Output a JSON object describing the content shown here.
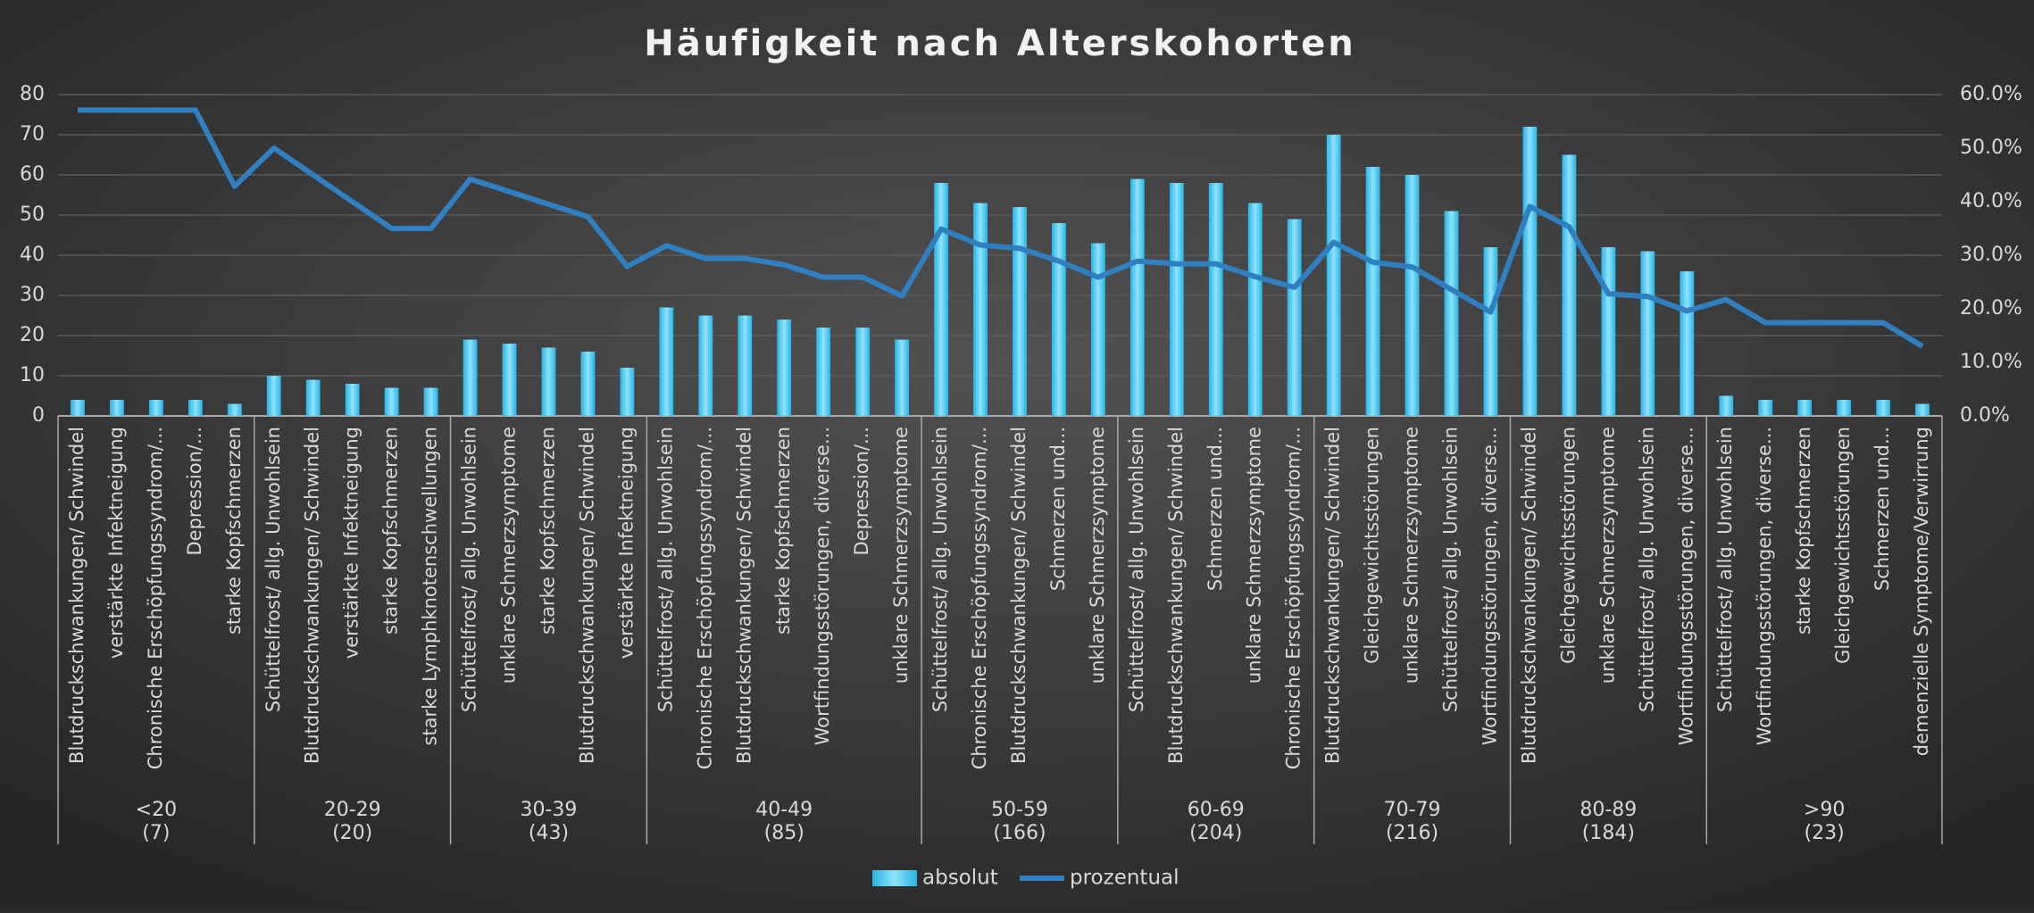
{
  "chart_data": {
    "type": "bar",
    "title": "Häufigkeit nach Alterskohorten",
    "groups": [
      {
        "label": "<20",
        "sublabel": "(7)",
        "categories": [
          "Blutdruckschwankungen/ Schwindel",
          "verstärkte Infektneigung",
          "Chronische Erschöpfungssyndrom/...",
          "Depression/...",
          "starke Kopfschmerzen"
        ]
      },
      {
        "label": "20-29",
        "sublabel": "(20)",
        "categories": [
          "Schüttelfrost/ allg. Unwohlsein",
          "Blutdruckschwankungen/ Schwindel",
          "verstärkte Infektneigung",
          "starke Kopfschmerzen",
          "starke Lymphknotenschwellungen"
        ]
      },
      {
        "label": "30-39",
        "sublabel": "(43)",
        "categories": [
          "Schüttelfrost/ allg. Unwohlsein",
          "unklare Schmerzsymptome",
          "starke Kopfschmerzen",
          "Blutdruckschwankungen/ Schwindel",
          "verstärkte Infektneigung"
        ]
      },
      {
        "label": "40-49",
        "sublabel": "(85)",
        "categories": [
          "Schüttelfrost/ allg. Unwohlsein",
          "Chronische Erschöpfungssyndrom/...",
          "Blutdruckschwankungen/ Schwindel",
          "starke Kopfschmerzen",
          "Wortfindungsstörungen, diverse...",
          "Depression/...",
          "unklare Schmerzsymptome"
        ]
      },
      {
        "label": "50-59",
        "sublabel": "(166)",
        "categories": [
          "Schüttelfrost/ allg. Unwohlsein",
          "Chronische Erschöpfungssyndrom/...",
          "Blutdruckschwankungen/ Schwindel",
          "Schmerzen und...",
          "unklare Schmerzsymptome"
        ]
      },
      {
        "label": "60-69",
        "sublabel": "(204)",
        "categories": [
          "Schüttelfrost/ allg. Unwohlsein",
          "Blutdruckschwankungen/ Schwindel",
          "Schmerzen und...",
          "unklare Schmerzsymptome",
          "Chronische Erschöpfungssyndrom/..."
        ]
      },
      {
        "label": "70-79",
        "sublabel": "(216)",
        "categories": [
          "Blutdruckschwankungen/ Schwindel",
          "Gleichgewichtsstörungen",
          "unklare Schmerzsymptome",
          "Schüttelfrost/ allg. Unwohlsein",
          "Wortfindungsstörungen, diverse..."
        ]
      },
      {
        "label": "80-89",
        "sublabel": "(184)",
        "categories": [
          "Blutdruckschwankungen/ Schwindel",
          "Gleichgewichtsstörungen",
          "unklare Schmerzsymptome",
          "Schüttelfrost/ allg. Unwohlsein",
          "Wortfindungsstörungen, diverse..."
        ]
      },
      {
        "label": ">90",
        "sublabel": "(23)",
        "categories": [
          "Schüttelfrost/ allg. Unwohlsein",
          "Wortfindungsstörungen, diverse...",
          "starke Kopfschmerzen",
          "Gleichgewichtsstörungen",
          "Schmerzen und...",
          "demenzielle Symptome/Verwirrung"
        ]
      }
    ],
    "series": [
      {
        "name": "absolut",
        "type": "bar",
        "color": "#4cc6ef",
        "values": [
          4,
          4,
          4,
          4,
          3,
          10,
          9,
          8,
          7,
          7,
          19,
          18,
          17,
          16,
          12,
          27,
          25,
          25,
          24,
          22,
          22,
          19,
          58,
          53,
          52,
          48,
          43,
          59,
          58,
          58,
          53,
          49,
          70,
          62,
          60,
          51,
          42,
          72,
          65,
          42,
          41,
          36,
          5,
          4,
          4,
          4,
          4,
          3
        ]
      },
      {
        "name": "prozentual",
        "type": "line",
        "axis": "y2",
        "color": "#2f7fc1",
        "values": [
          57.1,
          57.1,
          57.1,
          57.1,
          42.9,
          50,
          45,
          40,
          35,
          35,
          44.2,
          41.9,
          39.5,
          37.2,
          27.9,
          31.8,
          29.4,
          29.4,
          28.2,
          25.9,
          25.9,
          22.4,
          34.9,
          31.9,
          31.3,
          28.9,
          25.9,
          28.9,
          28.4,
          28.4,
          26.0,
          24.0,
          32.4,
          28.7,
          27.8,
          23.6,
          19.4,
          39.1,
          35.3,
          22.8,
          22.3,
          19.6,
          21.7,
          17.4,
          17.4,
          17.4,
          17.4,
          13.0
        ]
      }
    ],
    "ylim": [
      0,
      80
    ],
    "yticks": [
      0,
      10,
      20,
      30,
      40,
      50,
      60,
      70,
      80
    ],
    "y2lim": [
      0,
      60
    ],
    "y2ticks": [
      {
        "value": 0,
        "label": "0.0%"
      },
      {
        "value": 10,
        "label": "10.0%"
      },
      {
        "value": 20,
        "label": "20.0%"
      },
      {
        "value": 30,
        "label": "30.0%"
      },
      {
        "value": 40,
        "label": "40.0%"
      },
      {
        "value": 50,
        "label": "50.0%"
      },
      {
        "value": 60,
        "label": "60.0%"
      }
    ],
    "grid": true,
    "legend": "bottom"
  }
}
